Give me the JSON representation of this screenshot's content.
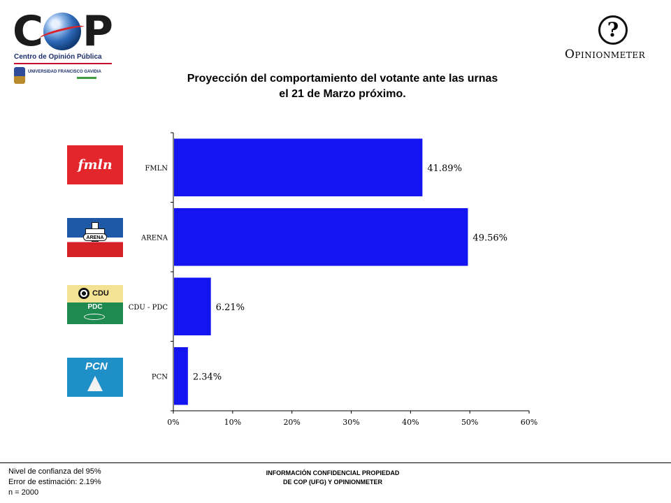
{
  "header": {
    "cop_logo": {
      "letters": [
        "C",
        "P"
      ],
      "subtitle": "Centro de Opinión Pública",
      "university": "UNIVERSIDAD FRANCISCO GAVIDIA"
    },
    "opinionmeter_logo": {
      "symbol": "?",
      "word": "Opinionmeter"
    }
  },
  "title_lines": [
    "Proyección del comportamiento del votante ante las urnas",
    "el 21 de Marzo próximo."
  ],
  "party_logos": {
    "fmln": "fmln",
    "arena": "ARENA",
    "cdu": "CDU",
    "pdc": "PDC",
    "pcn": "PCN"
  },
  "chart_data": {
    "type": "bar",
    "orientation": "horizontal",
    "categories": [
      "FMLN",
      "ARENA",
      "CDU - PDC",
      "PCN"
    ],
    "values": [
      41.89,
      49.56,
      6.21,
      2.34
    ],
    "data_labels": [
      "41.89%",
      "49.56%",
      "6.21%",
      "2.34%"
    ],
    "xlim": [
      0,
      60
    ],
    "xticks": [
      0,
      10,
      20,
      30,
      40,
      50,
      60
    ],
    "xtick_labels": [
      "0%",
      "10%",
      "20%",
      "30%",
      "40%",
      "50%",
      "60%"
    ],
    "bar_color": "#1414f0",
    "grid": false,
    "legend": false
  },
  "footer": {
    "notes": [
      "Nivel de confianza del 95%",
      "Error de estimación: 2.19%",
      "n = 2000"
    ],
    "confidential_lines": [
      "INFORMACIÓN CONFIDENCIAL PROPIEDAD",
      "DE COP (UFG) Y OPINIONMETER"
    ]
  }
}
